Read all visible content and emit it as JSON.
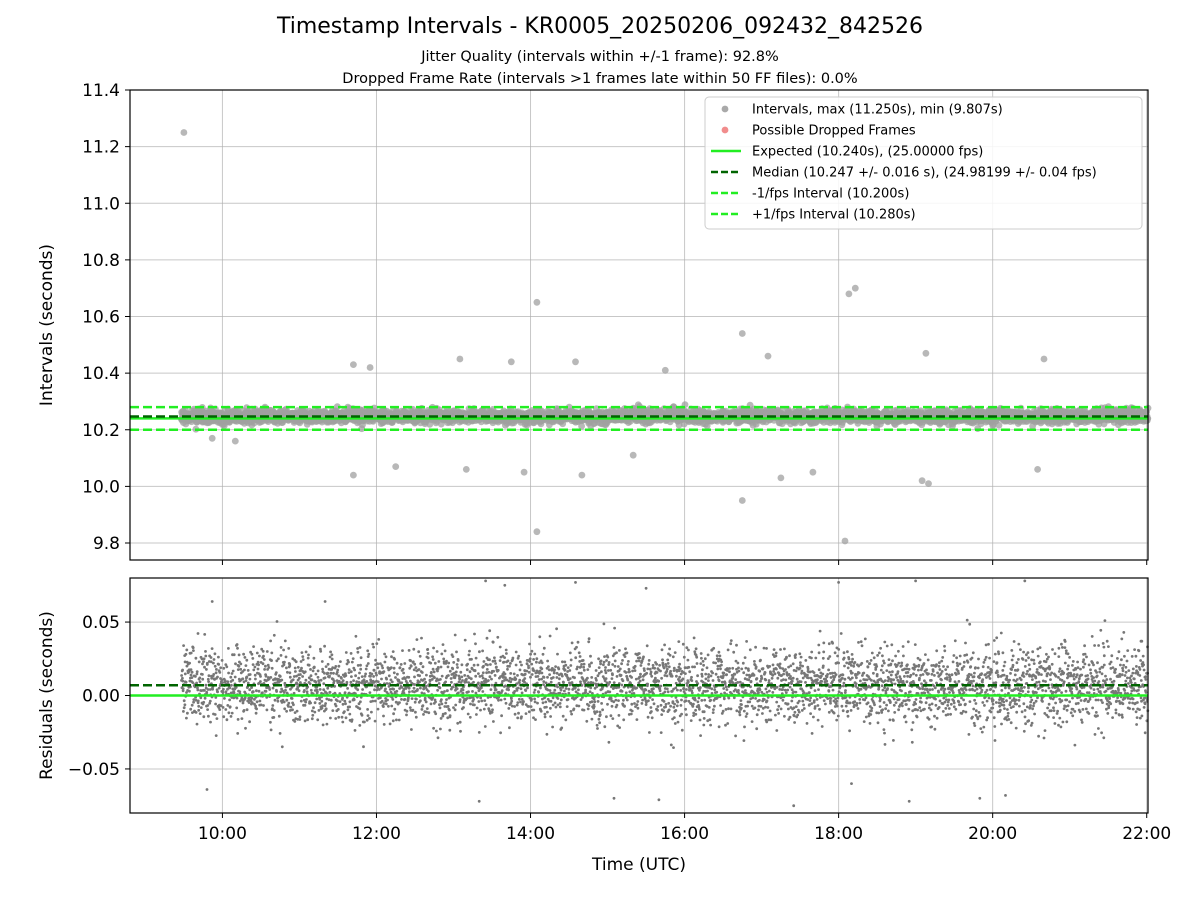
{
  "chart_data": [
    {
      "type": "scatter",
      "panel": "intervals",
      "title": "Timestamp Intervals - KR0005_20250206_092432_842526",
      "subtitle_lines": [
        "Jitter Quality (intervals within +/-1 frame): 92.8%",
        "Dropped Frame Rate (intervals >1 frames late within 50 FF files): 0.0%"
      ],
      "xlabel": "",
      "ylabel": "Intervals (seconds)",
      "xlim": [
        "08:48",
        "22:01"
      ],
      "ylim": [
        9.74,
        11.4
      ],
      "yticks": [
        "9.8",
        "10.0",
        "10.2",
        "10.4",
        "10.6",
        "10.8",
        "11.0",
        "11.2",
        "11.4"
      ],
      "xticks": [
        "10:00",
        "12:00",
        "14:00",
        "16:00",
        "18:00",
        "20:00",
        "22:00"
      ],
      "grid": true,
      "legend_position": "upper right",
      "legend": [
        {
          "label": "Intervals, max (11.250s), min (9.807s)",
          "marker": "dot",
          "color": "#a0a0a0"
        },
        {
          "label": "Possible Dropped Frames",
          "marker": "dot",
          "color": "#f08080"
        },
        {
          "label": "Expected (10.240s), (25.00000 fps)",
          "marker": "solid",
          "color": "#22ee22"
        },
        {
          "label": "Median (10.247 +/- 0.016 s), (24.98199 +/- 0.04 fps)",
          "marker": "dashed",
          "color": "#006400"
        },
        {
          "label": "-1/fps Interval (10.200s)",
          "marker": "dashed",
          "color": "#22ee22"
        },
        {
          "label": "+1/fps Interval (10.280s)",
          "marker": "dashed",
          "color": "#22ee22"
        }
      ],
      "reference_lines": {
        "expected": 10.24,
        "median": 10.247,
        "minus_one_frame": 10.2,
        "plus_one_frame": 10.28
      },
      "series": [
        {
          "name": "Intervals, max (11.250s), min (9.807s)",
          "x_range": [
            "09:28",
            "22:01"
          ],
          "y_center": 10.247,
          "y_spread": 0.02,
          "count_approx": 4400,
          "outliers": [
            [
              "09:30",
              11.25
            ],
            [
              "14:05",
              10.65
            ],
            [
              "18:08",
              10.68
            ],
            [
              "18:13",
              10.7
            ],
            [
              "16:45",
              10.54
            ],
            [
              "14:05",
              9.84
            ],
            [
              "18:05",
              9.807
            ],
            [
              "16:45",
              9.95
            ],
            [
              "11:42",
              10.43
            ],
            [
              "11:55",
              10.42
            ],
            [
              "13:05",
              10.45
            ],
            [
              "13:45",
              10.44
            ],
            [
              "14:35",
              10.44
            ],
            [
              "15:45",
              10.41
            ],
            [
              "17:05",
              10.46
            ],
            [
              "19:08",
              10.47
            ],
            [
              "20:40",
              10.45
            ],
            [
              "11:42",
              10.04
            ],
            [
              "12:15",
              10.07
            ],
            [
              "13:10",
              10.06
            ],
            [
              "13:55",
              10.05
            ],
            [
              "14:40",
              10.04
            ],
            [
              "15:20",
              10.11
            ],
            [
              "17:15",
              10.03
            ],
            [
              "17:40",
              10.05
            ],
            [
              "19:05",
              10.02
            ],
            [
              "19:10",
              10.01
            ],
            [
              "20:35",
              10.06
            ],
            [
              "09:52",
              10.17
            ],
            [
              "10:10",
              10.16
            ]
          ]
        }
      ]
    },
    {
      "type": "scatter",
      "panel": "residuals",
      "xlabel": "Time (UTC)",
      "ylabel": "Residuals (seconds)",
      "xlim": [
        "08:48",
        "22:01"
      ],
      "ylim": [
        -0.08,
        0.08
      ],
      "yticks": [
        "−0.05",
        "0.00",
        "0.05"
      ],
      "xticks": [
        "10:00",
        "12:00",
        "14:00",
        "16:00",
        "18:00",
        "20:00",
        "22:00"
      ],
      "grid": true,
      "reference_lines": {
        "expected": 0.0,
        "median": 0.007
      },
      "series": [
        {
          "name": "",
          "x_range": [
            "09:28",
            "22:01"
          ],
          "y_center": 0.007,
          "y_spread": 0.022,
          "count_approx": 4400,
          "outliers": [
            [
              "09:52",
              0.064
            ],
            [
              "11:20",
              0.064
            ],
            [
              "13:25",
              0.078
            ],
            [
              "13:40",
              0.075
            ],
            [
              "14:35",
              0.077
            ],
            [
              "15:30",
              0.073
            ],
            [
              "18:00",
              0.077
            ],
            [
              "19:00",
              0.078
            ],
            [
              "20:25",
              0.078
            ],
            [
              "09:48",
              -0.064
            ],
            [
              "13:20",
              -0.072
            ],
            [
              "15:05",
              -0.07
            ],
            [
              "15:40",
              -0.071
            ],
            [
              "17:25",
              -0.075
            ],
            [
              "18:10",
              -0.06
            ],
            [
              "18:55",
              -0.072
            ],
            [
              "19:50",
              -0.07
            ],
            [
              "20:10",
              -0.068
            ]
          ]
        }
      ]
    }
  ],
  "colors": {
    "interval_points": "#a0a0a0",
    "residual_points": "#777777",
    "expected_line": "#22ee22",
    "median_line": "#006400",
    "frame_bound_lines": "#22ee22",
    "dropped_frames": "#f08080",
    "grid": "#b0b0b0"
  }
}
